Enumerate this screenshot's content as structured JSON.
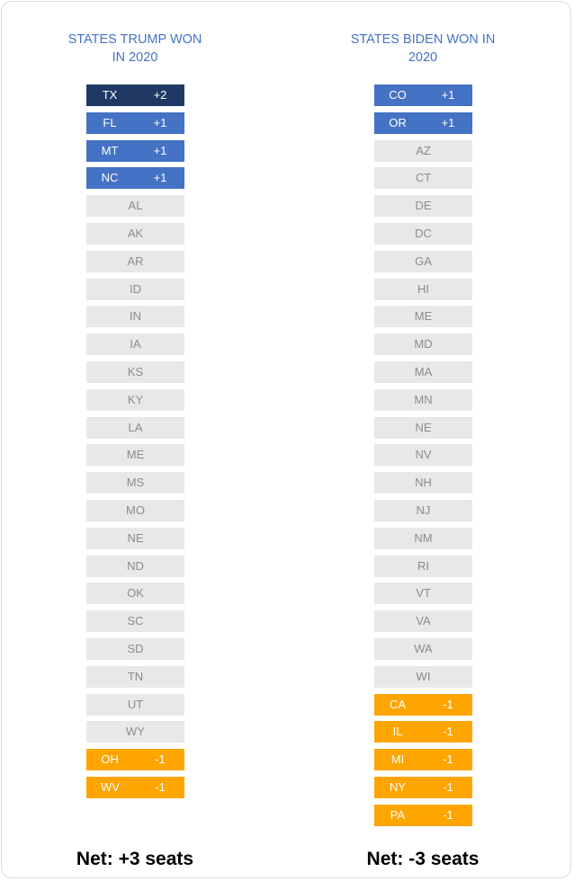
{
  "colors": {
    "+2": "#203864",
    "+1": "#4472c4",
    "-1": "#ffa500"
  },
  "columns": [
    {
      "title_lines": [
        "STATES TRUMP WON",
        "IN 2020"
      ],
      "items": [
        {
          "state": "TX",
          "change": "+2"
        },
        {
          "state": "FL",
          "change": "+1"
        },
        {
          "state": "MT",
          "change": "+1"
        },
        {
          "state": "NC",
          "change": "+1"
        },
        {
          "state": "AL"
        },
        {
          "state": "AK"
        },
        {
          "state": "AR"
        },
        {
          "state": "ID"
        },
        {
          "state": "IN"
        },
        {
          "state": "IA"
        },
        {
          "state": "KS"
        },
        {
          "state": "KY"
        },
        {
          "state": "LA"
        },
        {
          "state": "ME"
        },
        {
          "state": "MS"
        },
        {
          "state": "MO"
        },
        {
          "state": "NE"
        },
        {
          "state": "ND"
        },
        {
          "state": "OK"
        },
        {
          "state": "SC"
        },
        {
          "state": "SD"
        },
        {
          "state": "TN"
        },
        {
          "state": "UT"
        },
        {
          "state": "WY"
        },
        {
          "state": "OH",
          "change": "-1"
        },
        {
          "state": "WV",
          "change": "-1"
        }
      ],
      "net": "Net: +3 seats"
    },
    {
      "title_lines": [
        "STATES BIDEN WON IN",
        "2020"
      ],
      "items": [
        {
          "state": "CO",
          "change": "+1"
        },
        {
          "state": "OR",
          "change": "+1"
        },
        {
          "state": "AZ"
        },
        {
          "state": "CT"
        },
        {
          "state": "DE"
        },
        {
          "state": "DC"
        },
        {
          "state": "GA"
        },
        {
          "state": "HI"
        },
        {
          "state": "ME"
        },
        {
          "state": "MD"
        },
        {
          "state": "MA"
        },
        {
          "state": "MN"
        },
        {
          "state": "NE"
        },
        {
          "state": "NV"
        },
        {
          "state": "NH"
        },
        {
          "state": "NJ"
        },
        {
          "state": "NM"
        },
        {
          "state": "RI"
        },
        {
          "state": "VT"
        },
        {
          "state": "VA"
        },
        {
          "state": "WA"
        },
        {
          "state": "WI"
        },
        {
          "state": "CA",
          "change": "-1"
        },
        {
          "state": "IL",
          "change": "-1"
        },
        {
          "state": "MI",
          "change": "-1"
        },
        {
          "state": "NY",
          "change": "-1"
        },
        {
          "state": "PA",
          "change": "-1"
        }
      ],
      "net": "Net: -3 seats"
    }
  ]
}
